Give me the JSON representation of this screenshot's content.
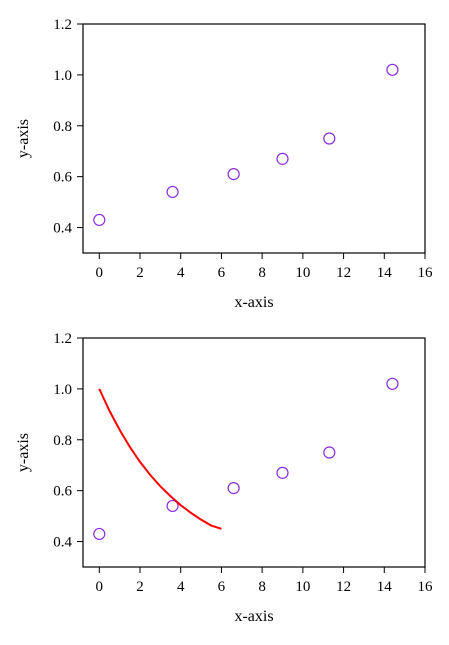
{
  "chart_data": [
    {
      "type": "scatter",
      "title": "",
      "xlabel": "x-axis",
      "ylabel": "y-axis",
      "xlim": [
        -0.8,
        16
      ],
      "ylim": [
        0.3,
        1.2
      ],
      "x_ticks": [
        "0",
        "2",
        "4",
        "6",
        "8",
        "10",
        "12",
        "14",
        "16"
      ],
      "y_ticks": [
        "0.4",
        "0.6",
        "0.8",
        "1.0",
        "1.2"
      ],
      "grid": false,
      "marker_color": "#8a2be2",
      "series": [
        {
          "kind": "scatter",
          "x": [
            0,
            3.6,
            6.6,
            9.0,
            11.3,
            14.4
          ],
          "y": [
            0.43,
            0.54,
            0.61,
            0.67,
            0.75,
            1.02
          ]
        }
      ]
    },
    {
      "type": "scatter",
      "title": "",
      "xlabel": "x-axis",
      "ylabel": "y-axis",
      "xlim": [
        -0.8,
        16
      ],
      "ylim": [
        0.3,
        1.2
      ],
      "x_ticks": [
        "0",
        "2",
        "4",
        "6",
        "8",
        "10",
        "12",
        "14",
        "16"
      ],
      "y_ticks": [
        "0.4",
        "0.6",
        "0.8",
        "1.0",
        "1.2"
      ],
      "grid": false,
      "marker_color": "#8a2be2",
      "line_color": "#ff0000",
      "series": [
        {
          "kind": "scatter",
          "x": [
            0,
            3.6,
            6.6,
            9.0,
            11.3,
            14.4
          ],
          "y": [
            0.43,
            0.54,
            0.61,
            0.67,
            0.75,
            1.02
          ]
        },
        {
          "kind": "line",
          "x": [
            0,
            0.5,
            1,
            1.5,
            2,
            2.5,
            3,
            3.5,
            4,
            4.5,
            5,
            5.5,
            6
          ],
          "y": [
            1.0,
            0.914,
            0.839,
            0.772,
            0.713,
            0.662,
            0.617,
            0.578,
            0.543,
            0.513,
            0.486,
            0.463,
            0.45
          ]
        }
      ]
    }
  ]
}
